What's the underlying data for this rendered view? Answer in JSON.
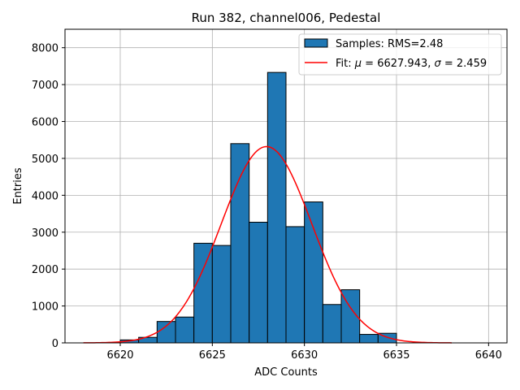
{
  "chart_data": {
    "type": "bar",
    "title": "Run 382, channel006, Pedestal",
    "xlabel": "ADC Counts",
    "ylabel": "Entries",
    "xlim": [
      6617,
      6641
    ],
    "ylim": [
      0,
      8500
    ],
    "xticks": [
      6620,
      6625,
      6630,
      6635,
      6640
    ],
    "yticks": [
      0,
      1000,
      2000,
      3000,
      4000,
      5000,
      6000,
      7000,
      8000
    ],
    "grid": true,
    "legend_position": "top-right",
    "bar_color": "#1f77b4",
    "fit_color": "#ff0000",
    "bin_width": 1,
    "bins": [
      {
        "x0": 6620,
        "value": 80
      },
      {
        "x0": 6621,
        "value": 150
      },
      {
        "x0": 6622,
        "value": 580
      },
      {
        "x0": 6623,
        "value": 700
      },
      {
        "x0": 6624,
        "value": 2700
      },
      {
        "x0": 6625,
        "value": 2640
      },
      {
        "x0": 6626,
        "value": 5400
      },
      {
        "x0": 6627,
        "value": 3270
      },
      {
        "x0": 6628,
        "value": 7330
      },
      {
        "x0": 6629,
        "value": 3150
      },
      {
        "x0": 6630,
        "value": 3820
      },
      {
        "x0": 6631,
        "value": 1040
      },
      {
        "x0": 6632,
        "value": 1440
      },
      {
        "x0": 6633,
        "value": 230
      },
      {
        "x0": 6634,
        "value": 260
      }
    ],
    "fit": {
      "mu": 6627.943,
      "sigma": 2.459,
      "amplitude": 5320,
      "x_range": [
        6618,
        6638
      ]
    },
    "legend": {
      "samples_label": "Samples: RMS=2.48",
      "fit_prefix": "Fit: ",
      "mu_symbol": "μ",
      "mu_text": " = 6627.943, ",
      "sigma_symbol": "σ",
      "sigma_text": " = 2.459"
    }
  }
}
